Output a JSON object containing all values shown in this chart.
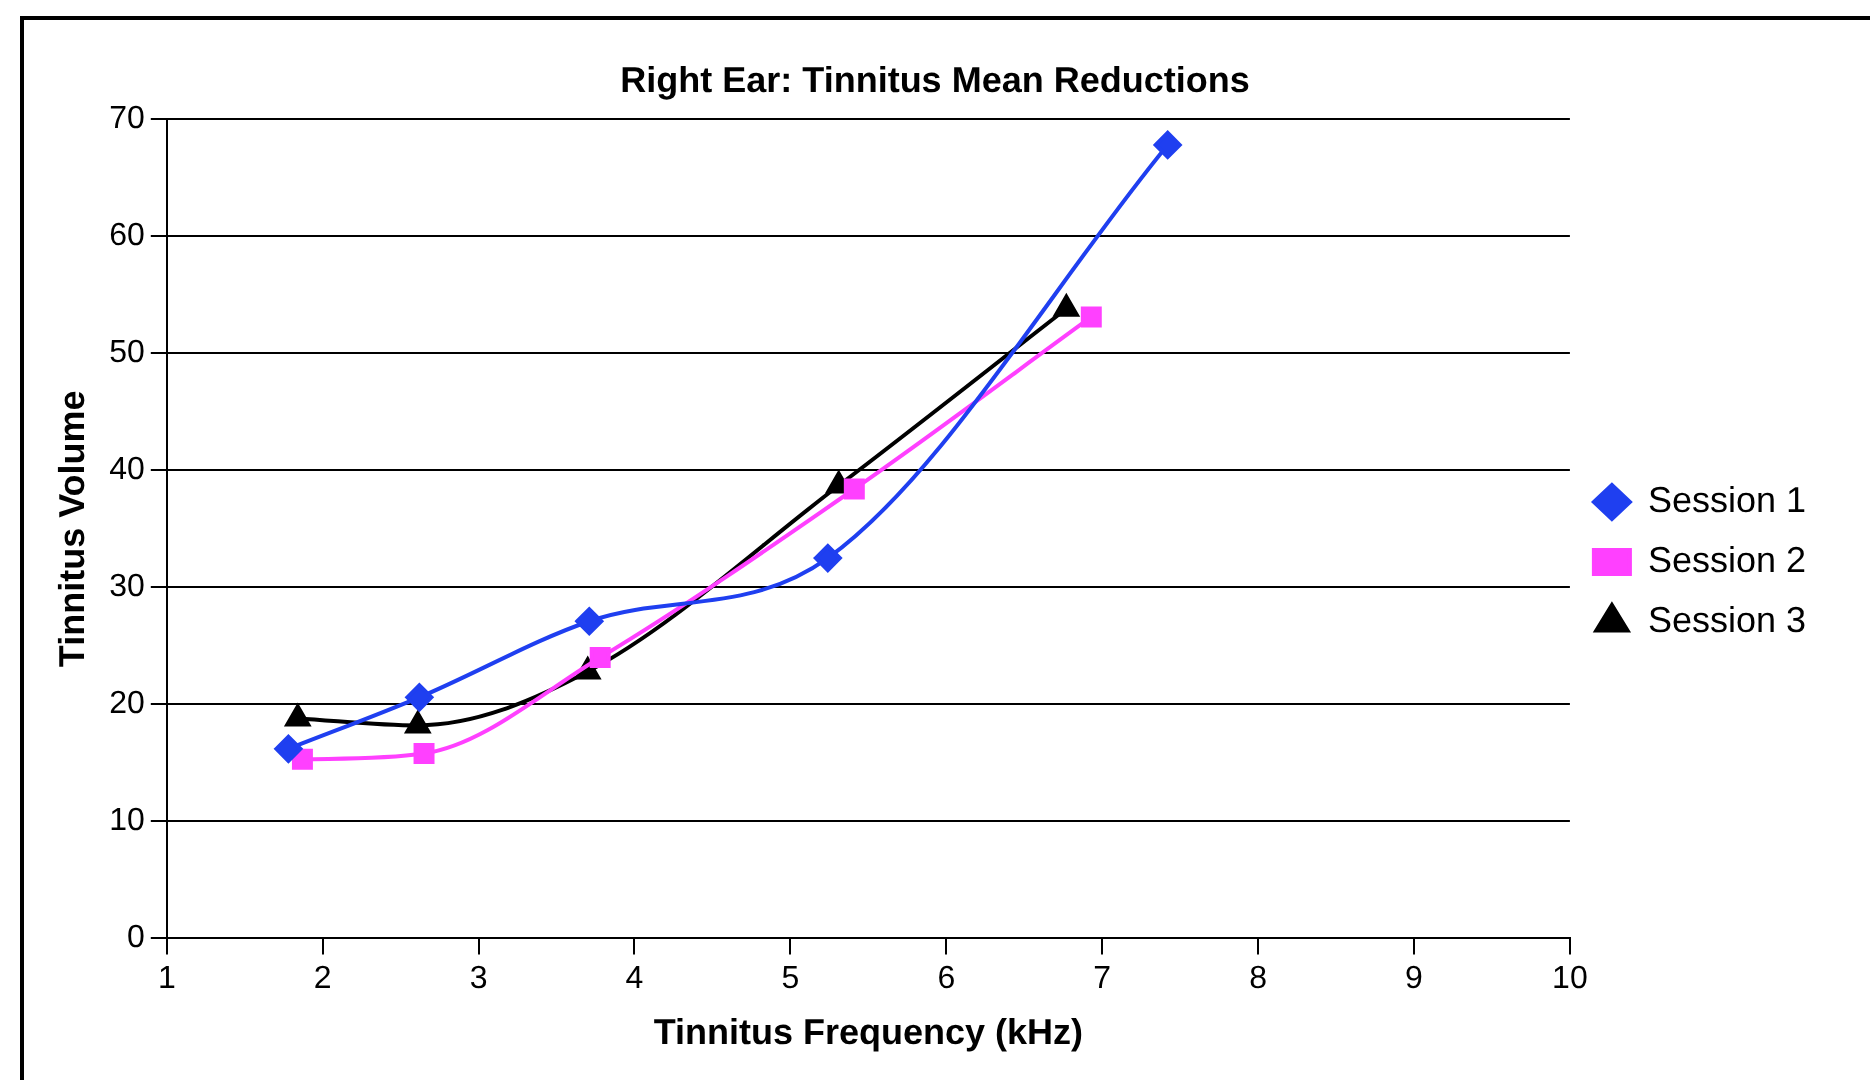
{
  "chart_data": {
    "type": "line",
    "title": "Right Ear: Tinnitus Mean Reductions",
    "xlabel": "Tinnitus Frequency (kHz)",
    "ylabel": "Tinnitus Volume",
    "xlim": [
      1,
      10
    ],
    "xticks": [
      1,
      2,
      3,
      4,
      5,
      6,
      7,
      8,
      9,
      10
    ],
    "ylim": [
      0,
      70
    ],
    "yticks": [
      0,
      10,
      20,
      30,
      40,
      50,
      60,
      70
    ],
    "grid": "y",
    "legend": "right",
    "series": [
      {
        "name": "Session 1",
        "color": "#1f3ff0",
        "marker": "diamond",
        "x": [
          1.78,
          2.62,
          3.71,
          5.24,
          7.42
        ],
        "values": [
          16.2,
          20.6,
          27.1,
          32.5,
          67.8
        ]
      },
      {
        "name": "Session 2",
        "color": "#ff40ff",
        "marker": "square",
        "x": [
          1.87,
          2.65,
          3.78,
          5.41,
          6.93
        ],
        "values": [
          15.3,
          15.8,
          24.0,
          38.4,
          53.1
        ]
      },
      {
        "name": "Session 3",
        "color": "#000000",
        "marker": "triangle",
        "x": [
          1.84,
          2.61,
          3.7,
          5.31,
          6.77
        ],
        "values": [
          18.8,
          18.2,
          22.8,
          38.7,
          53.8
        ]
      }
    ]
  }
}
